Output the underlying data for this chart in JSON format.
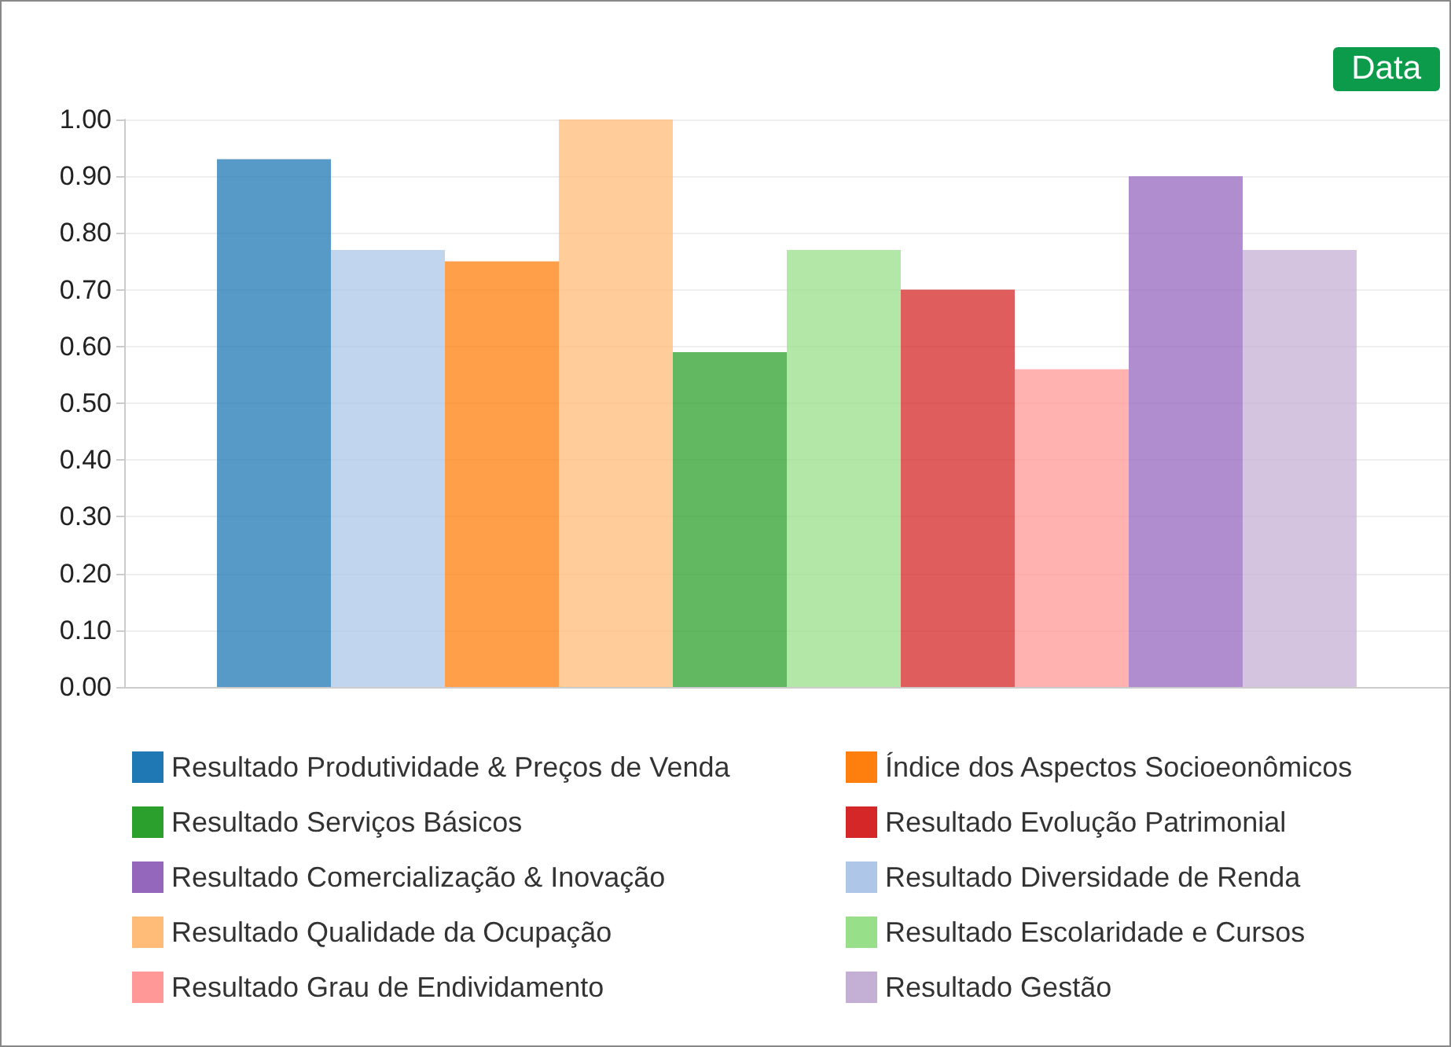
{
  "chart_data": {
    "type": "bar",
    "categories": [
      null
    ],
    "series": [
      {
        "name": "Resultado Produtividade & Preços de Venda",
        "color": "#1f77b4",
        "values": [
          0.93
        ]
      },
      {
        "name": "Resultado Diversidade de Renda",
        "color": "#aec7e8",
        "values": [
          0.77
        ]
      },
      {
        "name": "Índice dos Aspectos Socioeonômicos",
        "color": "#ff7f0e",
        "values": [
          0.75
        ]
      },
      {
        "name": "Resultado Qualidade da Ocupação",
        "color": "#ffbb78",
        "values": [
          1.0
        ]
      },
      {
        "name": "Resultado Serviços Básicos",
        "color": "#2ca02c",
        "values": [
          0.59
        ]
      },
      {
        "name": "Resultado Escolaridade e Cursos",
        "color": "#98df8a",
        "values": [
          0.77
        ]
      },
      {
        "name": "Resultado Evolução Patrimonial",
        "color": "#d62728",
        "values": [
          0.7
        ]
      },
      {
        "name": "Resultado Grau de Endividamento",
        "color": "#ff9896",
        "values": [
          0.56
        ]
      },
      {
        "name": "Resultado Comercialização & Inovação",
        "color": "#9467bd",
        "values": [
          0.9
        ]
      },
      {
        "name": "Resultado Gestão",
        "color": "#c5b0d5",
        "values": [
          0.77
        ]
      }
    ],
    "ylim": [
      0,
      1
    ],
    "yticks": [
      {
        "value": 0,
        "label": "0.00"
      },
      {
        "value": 0.1,
        "label": "0.10"
      },
      {
        "value": 0.2,
        "label": "0.20"
      },
      {
        "value": 0.3,
        "label": "0.30"
      },
      {
        "value": 0.4,
        "label": "0.40"
      },
      {
        "value": 0.5,
        "label": "0.50"
      },
      {
        "value": 0.6,
        "label": "0.60"
      },
      {
        "value": 0.7,
        "label": "0.70"
      },
      {
        "value": 0.8,
        "label": "0.80"
      },
      {
        "value": 0.9,
        "label": "0.90"
      },
      {
        "value": 1,
        "label": "1.00"
      }
    ],
    "grid": "y",
    "legend": "bottom",
    "annotations": [
      "Data"
    ]
  }
}
